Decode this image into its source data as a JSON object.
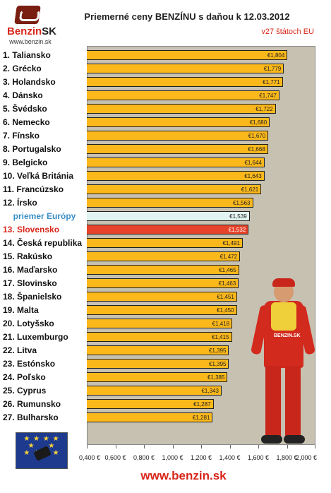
{
  "logo": {
    "brand": "Benzin",
    "brand_sk": "SK",
    "url": "www.benzin.sk"
  },
  "footer": "www.benzin.sk",
  "mechanic_label": "BENZIN.SK",
  "chart_data": {
    "type": "bar",
    "orientation": "horizontal",
    "title": "Priemerné ceny BENZÍNU s daňou k 12.03.2012",
    "subtitle": "v27 štátoch EU",
    "xlabel": "",
    "ylabel": "",
    "xlim": [
      0.4,
      2.0
    ],
    "x_ticks": [
      "0,400 €",
      "0,600 €",
      "0,800 €",
      "1,000 €",
      "1,200 €",
      "1,400 €",
      "1,600 €",
      "1,800 €",
      "2,000 €"
    ],
    "grid": false,
    "colors": {
      "default": "#fbb81b",
      "average": "#e2f4f1",
      "highlight": "#e7432a",
      "plot_bg": "#c7c1b2"
    },
    "categories": [
      "1. Taliansko",
      "2. Grécko",
      "3. Holandsko",
      "4. Dánsko",
      "5. Švédsko",
      "6. Nemecko",
      "7. Fínsko",
      "8. Portugalsko",
      "9. Belgicko",
      "10. Veľká Británia",
      "11. Francúzsko",
      "12. Írsko",
      "priemer Európy",
      "13. Slovensko",
      "14. Česká republika",
      "15. Rakúsko",
      "16. Maďarsko",
      "17. Slovinsko",
      "18. Španielsko",
      "19. Malta",
      "20. Lotyšsko",
      "21. Luxemburgo",
      "22. Litva",
      "23. Estónsko",
      "24. Poľsko",
      "25. Cyprus",
      "26. Rumunsko",
      "27. Bulharsko"
    ],
    "values": [
      1.804,
      1.779,
      1.771,
      1.747,
      1.722,
      1.68,
      1.67,
      1.668,
      1.644,
      1.643,
      1.621,
      1.563,
      1.539,
      1.532,
      1.491,
      1.472,
      1.465,
      1.463,
      1.451,
      1.45,
      1.418,
      1.415,
      1.395,
      1.395,
      1.385,
      1.343,
      1.287,
      1.281
    ],
    "value_labels": [
      "€1,804",
      "€1,779",
      "€1,771",
      "€1,747",
      "€1,722",
      "€1,680",
      "€1,670",
      "€1,668",
      "€1,644",
      "€1,643",
      "€1,621",
      "€1,563",
      "€1,539",
      "€1,532",
      "€1,491",
      "€1,472",
      "€1,465",
      "€1,463",
      "€1,451",
      "€1,450",
      "€1,418",
      "€1,415",
      "€1,395",
      "€1,395",
      "€1,385",
      "€1,343",
      "€1,287",
      "€1,281"
    ],
    "average_index": 12,
    "highlight_index": 13
  }
}
